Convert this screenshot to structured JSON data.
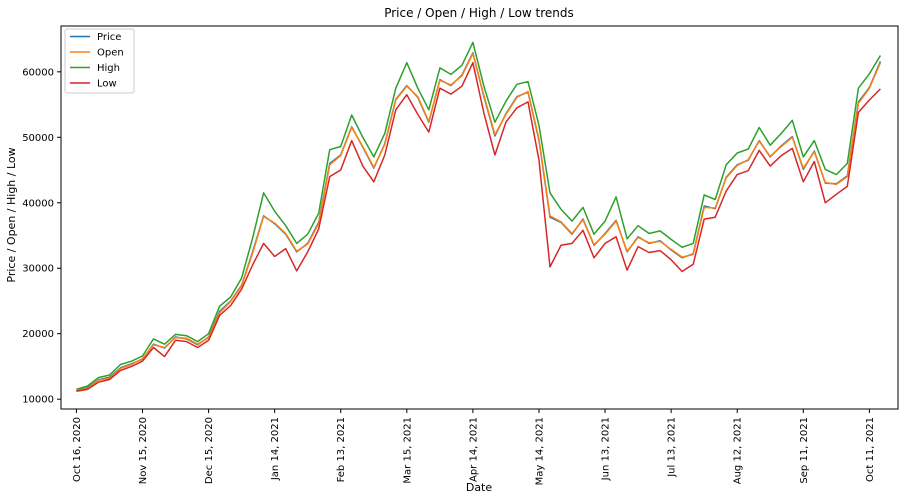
{
  "chart_data": {
    "type": "line",
    "title": "Price / Open / High / Low trends",
    "xlabel": "Date",
    "ylabel": "Price / Open / High / Low",
    "x_tick_labels": [
      "Oct 16, 2020",
      "Nov 15, 2020",
      "Dec 15, 2020",
      "Jan 14, 2021",
      "Feb 13, 2021",
      "Mar 15, 2021",
      "Apr 14, 2021",
      "May 14, 2021",
      "Jun 13, 2021",
      "Jul 13, 2021",
      "Aug 12, 2021",
      "Sep 11, 2021",
      "Oct 11, 2021"
    ],
    "y_ticks": [
      10000,
      20000,
      30000,
      40000,
      50000,
      60000
    ],
    "ylim": [
      8500,
      67000
    ],
    "xlim": [
      "2020-10-09",
      "2021-10-24"
    ],
    "grid": false,
    "legend_position": "top-left",
    "x": [
      "2020-10-16",
      "2020-10-21",
      "2020-10-26",
      "2020-10-31",
      "2020-11-05",
      "2020-11-10",
      "2020-11-15",
      "2020-11-20",
      "2020-11-25",
      "2020-11-30",
      "2020-12-05",
      "2020-12-10",
      "2020-12-15",
      "2020-12-20",
      "2020-12-25",
      "2020-12-30",
      "2021-01-04",
      "2021-01-09",
      "2021-01-14",
      "2021-01-19",
      "2021-01-24",
      "2021-01-29",
      "2021-02-03",
      "2021-02-08",
      "2021-02-13",
      "2021-02-18",
      "2021-02-23",
      "2021-02-28",
      "2021-03-05",
      "2021-03-10",
      "2021-03-15",
      "2021-03-20",
      "2021-03-25",
      "2021-03-30",
      "2021-04-04",
      "2021-04-09",
      "2021-04-14",
      "2021-04-19",
      "2021-04-24",
      "2021-04-29",
      "2021-05-04",
      "2021-05-09",
      "2021-05-14",
      "2021-05-19",
      "2021-05-24",
      "2021-05-29",
      "2021-06-03",
      "2021-06-08",
      "2021-06-13",
      "2021-06-18",
      "2021-06-23",
      "2021-06-28",
      "2021-07-03",
      "2021-07-08",
      "2021-07-13",
      "2021-07-18",
      "2021-07-23",
      "2021-07-28",
      "2021-08-02",
      "2021-08-07",
      "2021-08-12",
      "2021-08-17",
      "2021-08-22",
      "2021-08-27",
      "2021-09-01",
      "2021-09-06",
      "2021-09-11",
      "2021-09-16",
      "2021-09-21",
      "2021-09-26",
      "2021-10-01",
      "2021-10-06",
      "2021-10-11",
      "2021-10-16"
    ],
    "series": [
      {
        "name": "Price",
        "color": "#1f77b4",
        "values": [
          11350,
          11700,
          12950,
          13350,
          14800,
          15400,
          16100,
          18400,
          17800,
          19500,
          19200,
          18300,
          19500,
          23400,
          25000,
          27400,
          32500,
          38000,
          36800,
          35200,
          32500,
          33800,
          37000,
          46000,
          47300,
          51600,
          48500,
          45300,
          49000,
          55800,
          57900,
          56100,
          52300,
          58800,
          57900,
          59500,
          62900,
          56200,
          50200,
          53600,
          56200,
          56900,
          49500,
          37800,
          37000,
          35200,
          37500,
          33500,
          35300,
          37300,
          32500,
          34800,
          33800,
          34200,
          32800,
          31600,
          32200,
          39500,
          39100,
          43900,
          45800,
          46500,
          49500,
          47000,
          48700,
          50100,
          45100,
          47900,
          43000,
          42900,
          44100,
          55400,
          57600,
          61600
        ]
      },
      {
        "name": "Open",
        "color": "#ff7f0e",
        "values": [
          11400,
          11600,
          12900,
          13200,
          14700,
          15300,
          16200,
          18300,
          17900,
          19400,
          19300,
          18400,
          19400,
          23200,
          24900,
          27300,
          32300,
          37900,
          36900,
          35300,
          32600,
          33700,
          36800,
          45800,
          47200,
          51500,
          48600,
          45400,
          48900,
          55700,
          57800,
          56200,
          52400,
          58700,
          58000,
          59400,
          62800,
          56400,
          50400,
          53500,
          56100,
          57000,
          49700,
          38000,
          37100,
          35300,
          37400,
          33600,
          35200,
          37200,
          32600,
          34700,
          33900,
          34100,
          32900,
          31700,
          32100,
          39300,
          39200,
          43800,
          45700,
          46600,
          49400,
          47100,
          48600,
          50000,
          45300,
          47800,
          43100,
          42800,
          44000,
          55200,
          57500,
          61400
        ]
      },
      {
        "name": "High",
        "color": "#2ca02c",
        "values": [
          11500,
          12000,
          13300,
          13700,
          15300,
          15800,
          16600,
          19200,
          18400,
          19900,
          19700,
          18800,
          20000,
          24200,
          25600,
          28500,
          34600,
          41500,
          38700,
          36500,
          33800,
          35200,
          38400,
          48100,
          48600,
          53400,
          50000,
          47000,
          50600,
          57500,
          61400,
          57500,
          54200,
          60600,
          59600,
          61000,
          64500,
          57800,
          52300,
          55500,
          58100,
          58500,
          51800,
          41500,
          39000,
          37200,
          39300,
          35200,
          37200,
          40900,
          34500,
          36500,
          35300,
          35700,
          34400,
          33200,
          33800,
          41200,
          40500,
          45800,
          47600,
          48200,
          51500,
          48800,
          50600,
          52600,
          47000,
          49500,
          45100,
          44300,
          46000,
          57500,
          59700,
          62500
        ]
      },
      {
        "name": "Low",
        "color": "#d62728",
        "values": [
          11200,
          11500,
          12600,
          13000,
          14400,
          15000,
          15800,
          17900,
          16500,
          19000,
          18800,
          17900,
          19000,
          22800,
          24300,
          26800,
          30500,
          33800,
          31800,
          33000,
          29600,
          32500,
          36000,
          44000,
          45000,
          49500,
          45600,
          43200,
          47300,
          54200,
          56500,
          53500,
          50800,
          57500,
          56600,
          57800,
          61400,
          53700,
          47300,
          52300,
          54500,
          55400,
          46500,
          30200,
          33500,
          33800,
          35800,
          31600,
          33800,
          34800,
          29700,
          33300,
          32400,
          32700,
          31300,
          29500,
          30600,
          37500,
          37800,
          41800,
          44300,
          44900,
          48000,
          45600,
          47200,
          48300,
          43200,
          46300,
          40000,
          41300,
          42500,
          53800,
          55700,
          57400
        ]
      }
    ]
  }
}
